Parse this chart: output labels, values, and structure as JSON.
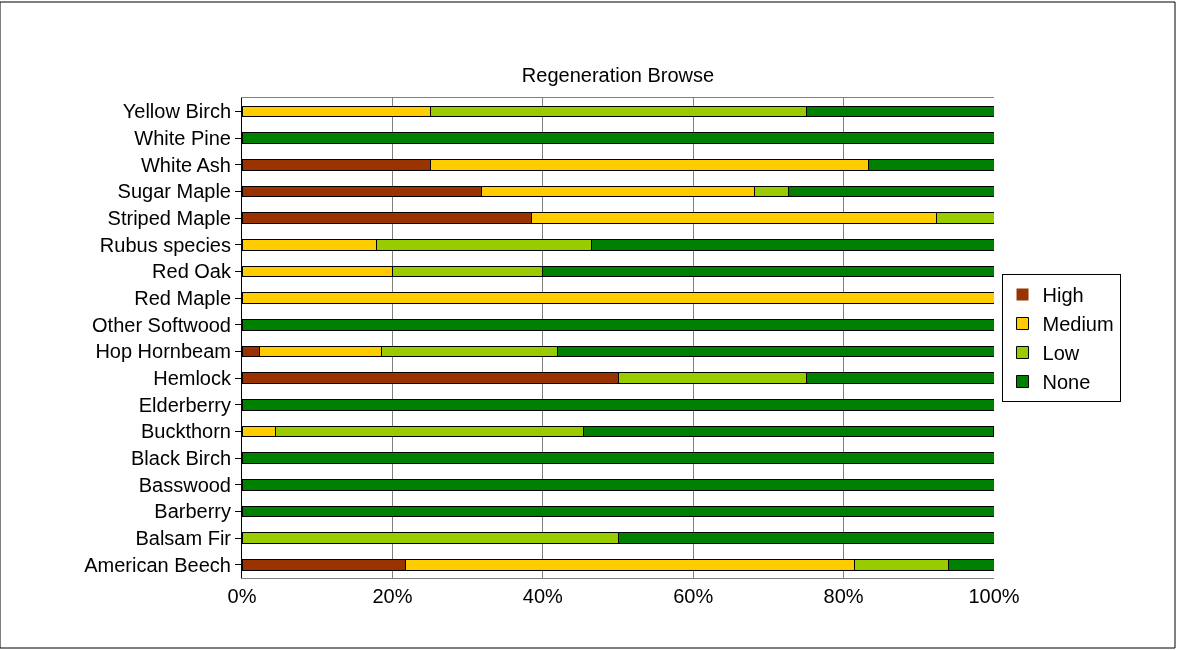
{
  "chart_data": {
    "type": "bar",
    "title": "Regeneration Browse",
    "orientation": "horizontal",
    "stacked": true,
    "categories": [
      "Yellow Birch",
      "White Pine",
      "White Ash",
      "Sugar Maple",
      "Striped Maple",
      "Rubus species",
      "Red Oak",
      "Red Maple",
      "Other Softwood",
      "Hop Hornbeam",
      "Hemlock",
      "Elderberry",
      "Buckthorn",
      "Black Birch",
      "Basswood",
      "Barberry",
      "Balsam Fir",
      "American Beech"
    ],
    "series": [
      {
        "name": "High",
        "color": "#993300",
        "values": [
          0,
          0,
          25,
          31.8,
          38.5,
          0,
          0,
          0,
          0,
          2.3,
          50,
          0,
          0,
          0,
          0,
          0,
          0,
          21.8
        ]
      },
      {
        "name": "Medium",
        "color": "#ffcc00",
        "values": [
          25,
          0,
          58.3,
          36.4,
          53.8,
          17.9,
          20,
          100,
          0,
          16.3,
          0,
          0,
          4.5,
          0,
          0,
          0,
          0,
          59.6
        ]
      },
      {
        "name": "Low",
        "color": "#99cc00",
        "values": [
          50,
          0,
          0,
          4.5,
          7.7,
          28.6,
          20,
          0,
          0,
          23.3,
          25,
          0,
          40.9,
          0,
          0,
          0,
          50,
          12.5
        ]
      },
      {
        "name": "None",
        "color": "#008000",
        "values": [
          25,
          100,
          16.7,
          27.3,
          0,
          53.6,
          60,
          0,
          100,
          58.1,
          25,
          100,
          54.5,
          100,
          100,
          100,
          50,
          6.1
        ]
      }
    ],
    "xlim": [
      0,
      100
    ],
    "xticks": [
      {
        "value": 0,
        "label": "0%"
      },
      {
        "value": 20,
        "label": "20%"
      },
      {
        "value": 40,
        "label": "40%"
      },
      {
        "value": 60,
        "label": "60%"
      },
      {
        "value": 80,
        "label": "80%"
      },
      {
        "value": 100,
        "label": "100%"
      }
    ],
    "grid": "x",
    "legend": "right"
  }
}
